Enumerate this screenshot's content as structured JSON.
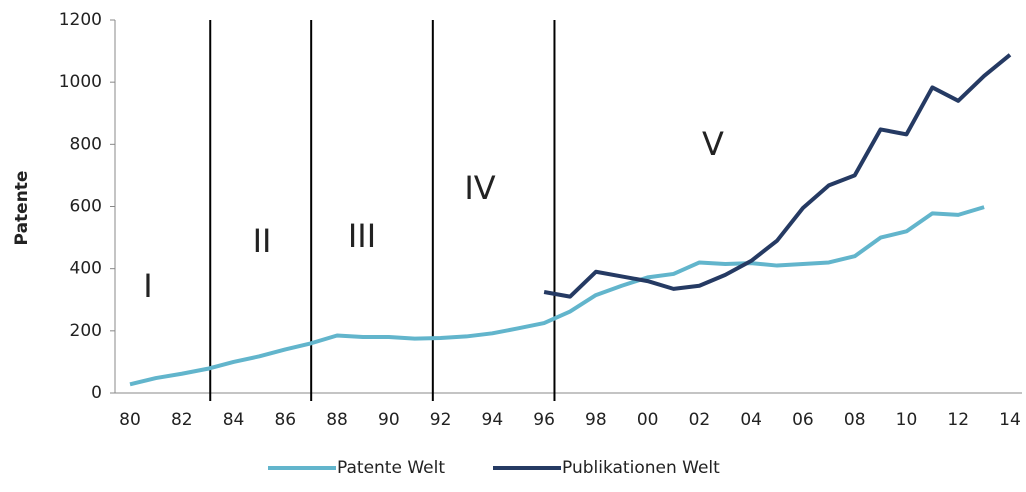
{
  "chart_data": {
    "type": "line",
    "y_label": "Patente",
    "categories": [
      "80",
      null,
      "82",
      null,
      "84",
      null,
      "86",
      null,
      "88",
      null,
      "90",
      null,
      "92",
      null,
      "94",
      null,
      "96",
      null,
      "98",
      null,
      "00",
      null,
      "02",
      null,
      "04",
      null,
      "06",
      null,
      "08",
      null,
      "10",
      null,
      "12",
      null,
      "14"
    ],
    "series": [
      {
        "name": "Patente Welt",
        "color": "#62b5cc",
        "values": [
          28,
          48,
          62,
          78,
          100,
          118,
          140,
          160,
          185,
          180,
          180,
          175,
          177,
          182,
          192,
          208,
          225,
          262,
          315,
          345,
          372,
          383,
          420,
          415,
          418,
          410,
          415,
          420,
          440,
          500,
          520,
          578,
          573,
          598,
          null
        ]
      },
      {
        "name": "Publikationen Welt",
        "color": "#253a63",
        "values": [
          null,
          null,
          null,
          null,
          null,
          null,
          null,
          null,
          null,
          null,
          null,
          null,
          null,
          null,
          null,
          null,
          325,
          310,
          390,
          375,
          360,
          335,
          345,
          380,
          425,
          490,
          595,
          668,
          700,
          848,
          832,
          983,
          940,
          1020,
          1088
        ]
      }
    ],
    "ylim": [
      0,
      1200
    ],
    "yticks": [
      0,
      200,
      400,
      600,
      800,
      1000,
      1200
    ],
    "phase_boundaries": [
      3.1,
      7,
      11.7,
      16.4
    ],
    "annotations": [
      "I",
      "II",
      "III",
      "IV",
      "V"
    ],
    "legend": "bottom"
  }
}
